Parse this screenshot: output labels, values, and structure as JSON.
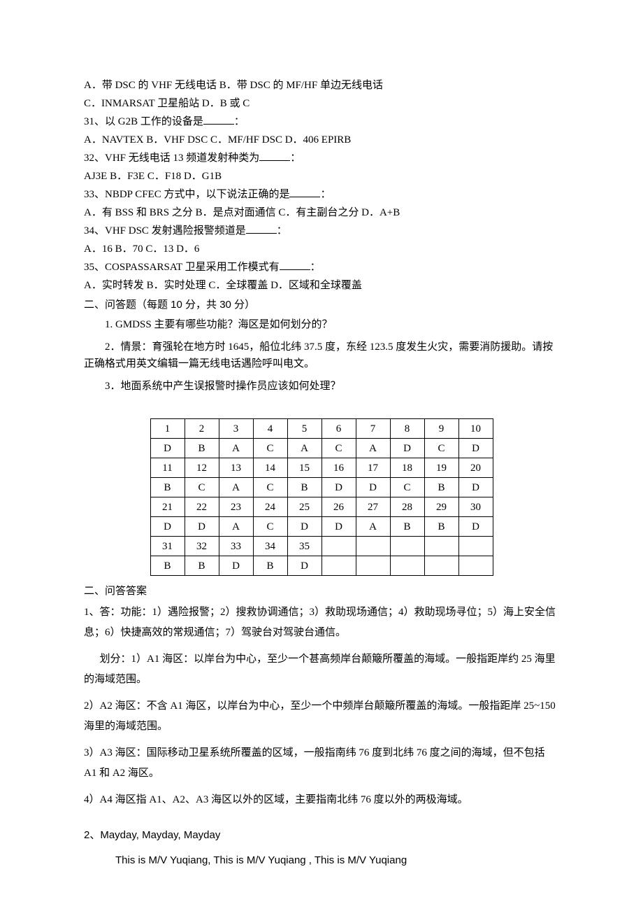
{
  "q30_options": {
    "a": "A．带 DSC 的 VHF 无线电话 B．带 DSC 的 MF/HF 单边无线电话",
    "c": "C．INMARSAT 卫星船站        D．B 或 C"
  },
  "q31": {
    "stem_pre": "31、以 G2B 工作的设备是",
    "stem_post": "：",
    "opts": "A．NAVTEX B．VHF DSC C．MF/HF DSC D．406 EPIRB"
  },
  "q32": {
    "stem_pre": "32、VHF 无线电话 13 频道发射种类为",
    "stem_post": "：",
    "opts": "AJ3E B．F3E C．F18 D．G1B"
  },
  "q33": {
    "stem_pre": "33、NBDP CFEC 方式中，以下说法正确的是",
    "stem_post": "：",
    "opts": "A．有 BSS 和 BRS 之分  B．是点对面通信  C．有主副台之分  D．A+B"
  },
  "q34": {
    "stem_pre": "34、VHF DSC 发射遇险报警频道是",
    "stem_post": "：",
    "opts": "A．16 B．70 C．13 D．6"
  },
  "q35": {
    "stem_pre": "35、COSPASSARSAT 卫星采用工作模式有",
    "stem_post": "：",
    "opts": "A．实时转发  B．实时处理  C．全球覆盖  D．区域和全球覆盖"
  },
  "section2_heading": "二、问答题（每题 10 分，共 30 分）",
  "essay1": "1. GMDSS 主要有哪些功能？海区是如何划分的？",
  "essay2": "2．情景：育强轮在地方时 1645，船位北纬 37.5 度，东经 123.5 度发生火灾，需要消防援助。请按正确格式用英文编辑一篇无线电话遇险呼叫电文。",
  "essay3": "3．地面系统中产生误报警时操作员应该如何处理？",
  "answer_table": {
    "rows": [
      [
        "1",
        "2",
        "3",
        "4",
        "5",
        "6",
        "7",
        "8",
        "9",
        "10"
      ],
      [
        "D",
        "B",
        "A",
        "C",
        "A",
        "C",
        "A",
        "D",
        "C",
        "D"
      ],
      [
        "11",
        "12",
        "13",
        "14",
        "15",
        "16",
        "17",
        "18",
        "19",
        "20"
      ],
      [
        "B",
        "C",
        "A",
        "C",
        "B",
        "D",
        "D",
        "C",
        "B",
        "D"
      ],
      [
        "21",
        "22",
        "23",
        "24",
        "25",
        "26",
        "27",
        "28",
        "29",
        "30"
      ],
      [
        "D",
        "D",
        "A",
        "C",
        "D",
        "D",
        "A",
        "B",
        "B",
        "D"
      ],
      [
        "31",
        "32",
        "33",
        "34",
        "35",
        "",
        "",
        "",
        "",
        ""
      ],
      [
        "B",
        "B",
        "D",
        "B",
        "D",
        "",
        "",
        "",
        "",
        ""
      ]
    ]
  },
  "answer_heading": "二、问答答案",
  "ans1_l1": "1、答：功能：1）遇险报警；2）搜救协调通信；3）救助现场通信；4）救助现场寻位；5）海上安全信息；6）快捷高效的常规通信；7）驾驶台对驾驶台通信。",
  "ans1_l2": "划分：1）A1 海区：以岸台为中心，至少一个甚高频岸台颠簸所覆盖的海域。一般指距岸约 25 海里的海域范围。",
  "ans1_l3": "  2）A2 海区：不含 A1 海区，以岸台为中心，至少一个中频岸台颠簸所覆盖的海域。一般指距岸 25~150 海里的海域范围。",
  "ans1_l4": "  3）A3 海区：国际移动卫星系统所覆盖的区域，一般指南纬 76 度到北纬 76 度之间的海域，但不包括 A1 和 A2 海区。",
  "ans1_l5": "4）A4 海区指 A1、A2、A3 海区以外的区域，主要指南北纬 76 度以外的两极海域。",
  "ans2_l1": "2、Mayday, Mayday, Mayday",
  "ans2_l2": "This is M/V Yuqiang,  This is M/V Yuqiang , This is M/V Yuqiang"
}
